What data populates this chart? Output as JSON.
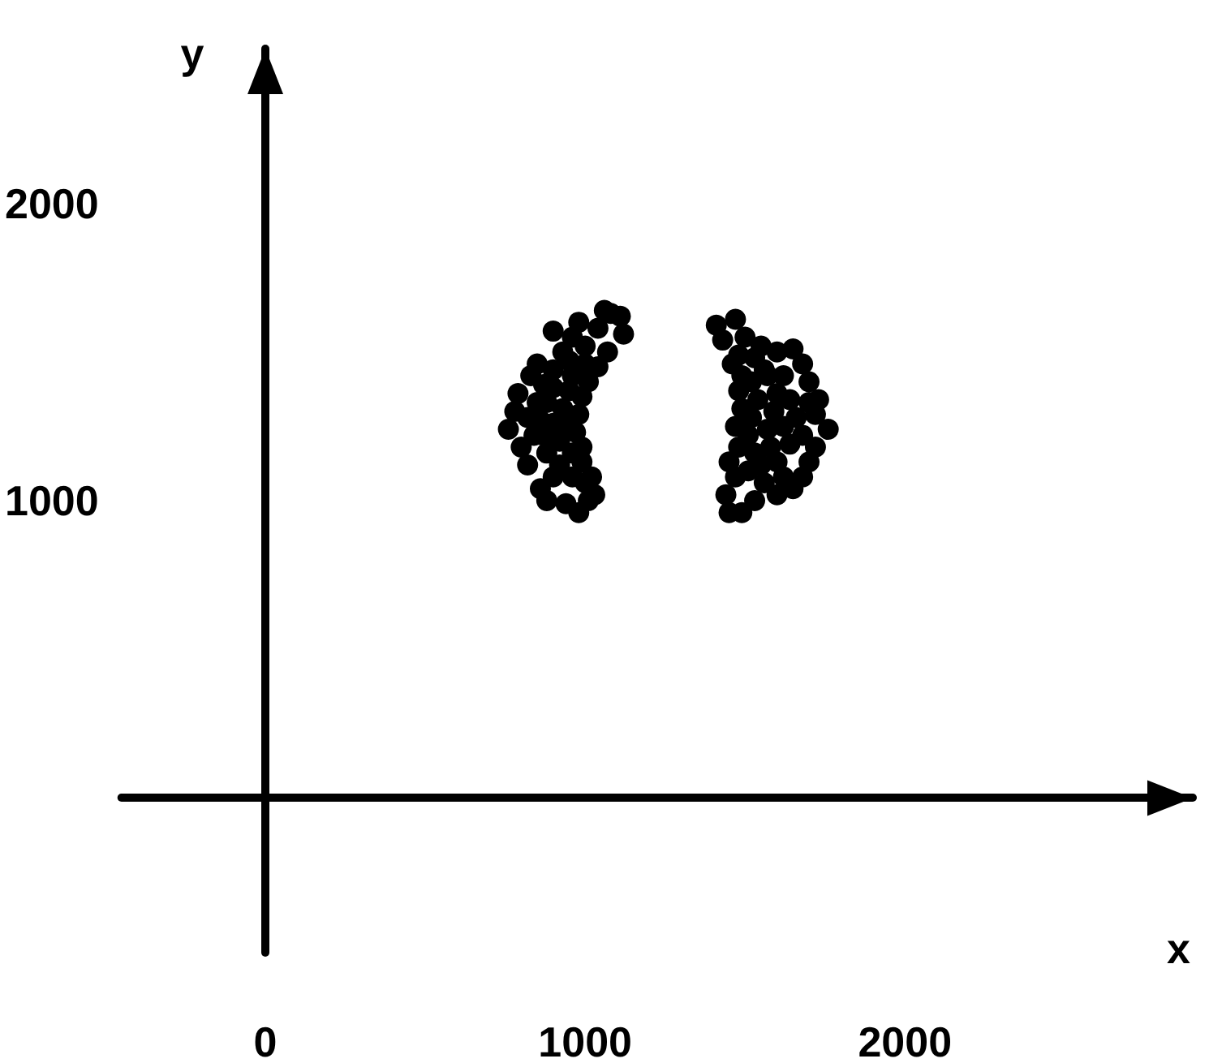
{
  "chart_data": {
    "type": "scatter",
    "xlabel": "x",
    "ylabel": "y",
    "xlim": [
      -450,
      2900
    ],
    "ylim": [
      -520,
      2520
    ],
    "xticks": [
      0,
      1000,
      2000
    ],
    "yticks": [
      1000,
      2000
    ],
    "marker": "circle",
    "series": [
      {
        "color": "#000000",
        "x": [
          760,
          780,
          790,
          800,
          820,
          830,
          850,
          860,
          880,
          900,
          940,
          980,
          1010,
          1030,
          1000,
          960,
          920,
          880,
          840,
          820,
          850,
          870,
          900,
          930,
          960,
          1000,
          1040,
          1080,
          1110,
          1120,
          1070,
          1040,
          1010,
          990,
          980,
          970,
          990,
          990,
          1020,
          900,
          930,
          950,
          920,
          880,
          860,
          960,
          950,
          900,
          940,
          960,
          900,
          870,
          1060,
          980,
          1000,
          1410,
          1470,
          1430,
          1480,
          1500,
          1460,
          1490,
          1530,
          1560,
          1600,
          1650,
          1680,
          1700,
          1730,
          1720,
          1760,
          1720,
          1700,
          1680,
          1650,
          1600,
          1560,
          1530,
          1490,
          1450,
          1440,
          1470,
          1450,
          1480,
          1470,
          1490,
          1480,
          1520,
          1540,
          1520,
          1510,
          1530,
          1510,
          1550,
          1580,
          1570,
          1590,
          1600,
          1620,
          1640,
          1660,
          1620,
          1640,
          1600,
          1620,
          1570,
          1550,
          1680,
          1700
        ],
        "values": [
          1240,
          1300,
          1360,
          1180,
          1120,
          1420,
          1460,
          1040,
          1000,
          1570,
          990,
          960,
          1000,
          1020,
          1060,
          1080,
          1120,
          1160,
          1220,
          1280,
          1330,
          1390,
          1440,
          1500,
          1550,
          1520,
          1580,
          1630,
          1620,
          1560,
          1500,
          1450,
          1400,
          1350,
          1290,
          1230,
          1180,
          1130,
          1080,
          1260,
          1310,
          1370,
          1200,
          1330,
          1270,
          1420,
          1470,
          1380,
          1250,
          1160,
          1080,
          1220,
          1640,
          1600,
          1460,
          1590,
          1610,
          1540,
          1490,
          1550,
          1460,
          1420,
          1480,
          1440,
          1500,
          1510,
          1460,
          1400,
          1340,
          1290,
          1240,
          1180,
          1130,
          1080,
          1040,
          1020,
          1060,
          1000,
          960,
          960,
          1020,
          1080,
          1130,
          1180,
          1250,
          1310,
          1370,
          1400,
          1340,
          1280,
          1220,
          1160,
          1100,
          1120,
          1180,
          1240,
          1300,
          1360,
          1420,
          1340,
          1280,
          1250,
          1190,
          1130,
          1080,
          1420,
          1520,
          1220,
          1330
        ]
      }
    ]
  }
}
